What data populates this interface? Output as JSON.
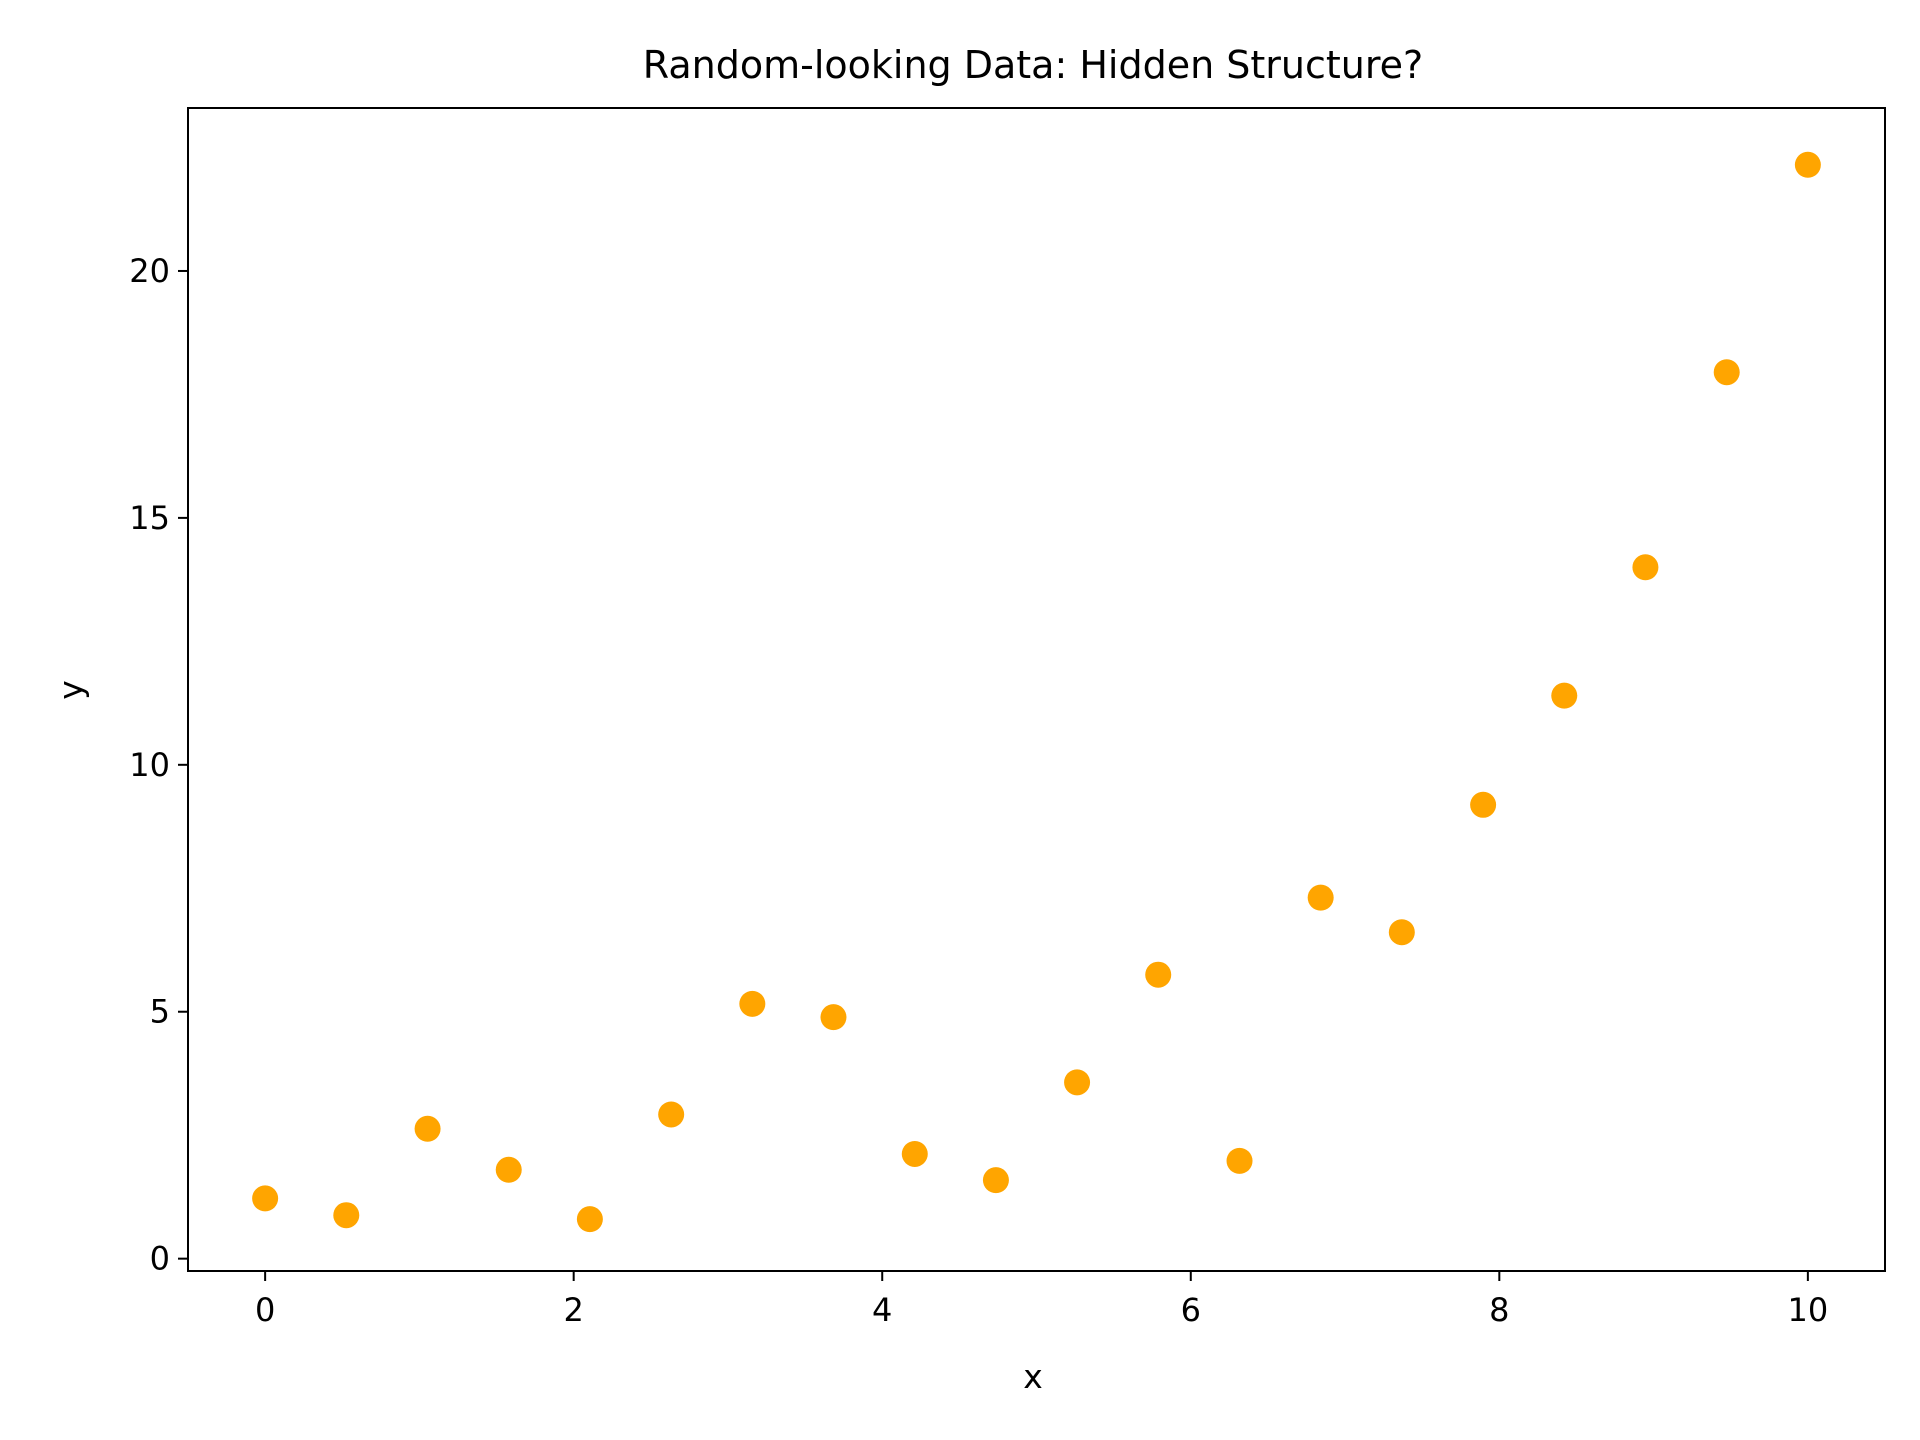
{
  "chart_data": {
    "type": "scatter",
    "title": "Random-looking Data: Hidden Structure?",
    "xlabel": "x",
    "ylabel": "y",
    "xlim": [
      -0.5,
      10.5
    ],
    "ylim": [
      -0.25,
      23.3
    ],
    "xticks": [
      0,
      2,
      4,
      6,
      8,
      10
    ],
    "yticks": [
      0,
      5,
      10,
      15,
      20
    ],
    "grid": false,
    "legend": "none",
    "marker_color": "#FFA500",
    "series": [
      {
        "x": [
          0,
          0.526,
          1.053,
          1.579,
          2.105,
          2.632,
          3.158,
          3.684,
          4.211,
          4.737,
          5.263,
          5.789,
          6.316,
          6.842,
          7.368,
          7.895,
          8.421,
          8.947,
          9.474,
          10
        ],
        "y": [
          1.22,
          0.88,
          2.63,
          1.8,
          0.8,
          2.92,
          5.16,
          4.89,
          2.12,
          1.59,
          3.57,
          5.75,
          1.98,
          7.31,
          6.61,
          9.19,
          11.4,
          14.0,
          17.95,
          22.15
        ]
      }
    ]
  }
}
